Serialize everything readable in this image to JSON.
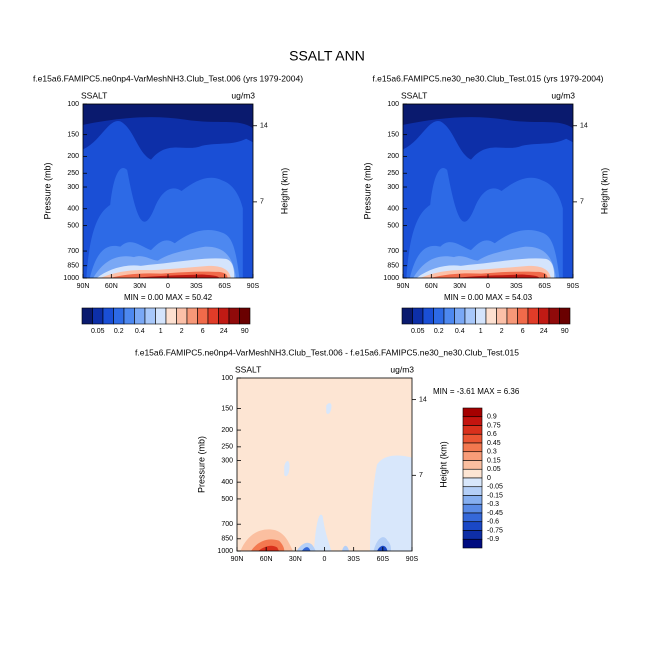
{
  "title": "SSALT ANN",
  "chart_data": [
    {
      "type": "contour",
      "subtitle": "f.e15a6.FAMIPC5.ne0np4-VarMeshNH3.Club_Test.006 (yrs 1979-2004)",
      "left_label": "SSALT",
      "right_label": "ug/m3",
      "ylabel": "Pressure (mb)",
      "y2label": "Height (km)",
      "ylim": [
        1000,
        100
      ],
      "yscale": "log",
      "yticks": [
        100,
        150,
        200,
        250,
        300,
        400,
        500,
        700,
        850,
        1000
      ],
      "y2lim": [
        0,
        16
      ],
      "y2ticks": [
        14,
        7
      ],
      "xlim": [
        90,
        -90
      ],
      "xticks": [
        {
          "value": 90,
          "label": "90N"
        },
        {
          "value": 60,
          "label": "60N"
        },
        {
          "value": 30,
          "label": "30N"
        },
        0,
        {
          "value": -30,
          "label": "30S"
        },
        {
          "value": -60,
          "label": "60S"
        },
        {
          "value": -90,
          "label": "90S"
        }
      ],
      "stats": "MIN =  0.00  MAX = 50.42",
      "colorbar": {
        "orientation": "horizontal",
        "labels": [
          0.05,
          0.2,
          0.4,
          1,
          2,
          6,
          24,
          90
        ],
        "colors": [
          "#0a1a6e",
          "#0d2fa8",
          "#1a4fd6",
          "#2d6ae6",
          "#4d88f0",
          "#7aa8f5",
          "#a8c8fa",
          "#d4e4fc",
          "#fde0d0",
          "#fbc0a8",
          "#f79878",
          "#f06a4a",
          "#e03c28",
          "#c01a14",
          "#900a0a",
          "#6a0000"
        ]
      }
    },
    {
      "type": "contour",
      "subtitle": "f.e15a6.FAMIPC5.ne30_ne30.Club_Test.015 (yrs 1979-2004)",
      "left_label": "SSALT",
      "right_label": "ug/m3",
      "ylabel": "Pressure (mb)",
      "y2label": "Height (km)",
      "ylim": [
        1000,
        100
      ],
      "yscale": "log",
      "yticks": [
        100,
        150,
        200,
        250,
        300,
        400,
        500,
        700,
        850,
        1000
      ],
      "y2lim": [
        0,
        16
      ],
      "y2ticks": [
        14,
        7
      ],
      "xlim": [
        90,
        -90
      ],
      "xticks": [
        {
          "value": 90,
          "label": "90N"
        },
        {
          "value": 60,
          "label": "60N"
        },
        {
          "value": 30,
          "label": "30N"
        },
        0,
        {
          "value": -30,
          "label": "30S"
        },
        {
          "value": -60,
          "label": "60S"
        },
        {
          "value": -90,
          "label": "90S"
        }
      ],
      "stats": "MIN =  0.00  MAX = 54.03",
      "colorbar": {
        "orientation": "horizontal",
        "labels": [
          0.05,
          0.2,
          0.4,
          1,
          2,
          6,
          24,
          90
        ],
        "colors": [
          "#0a1a6e",
          "#0d2fa8",
          "#1a4fd6",
          "#2d6ae6",
          "#4d88f0",
          "#7aa8f5",
          "#a8c8fa",
          "#d4e4fc",
          "#fde0d0",
          "#fbc0a8",
          "#f79878",
          "#f06a4a",
          "#e03c28",
          "#c01a14",
          "#900a0a",
          "#6a0000"
        ]
      }
    },
    {
      "type": "contour-diff",
      "subtitle": "f.e15a6.FAMIPC5.ne0np4-VarMeshNH3.Club_Test.006 - f.e15a6.FAMIPC5.ne30_ne30.Club_Test.015",
      "left_label": "SSALT",
      "right_label": "ug/m3",
      "ylabel": "Pressure (mb)",
      "y2label": "Height (km)",
      "ylim": [
        1000,
        100
      ],
      "yscale": "log",
      "yticks": [
        100,
        150,
        200,
        250,
        300,
        400,
        500,
        700,
        850,
        1000
      ],
      "y2lim": [
        0,
        16
      ],
      "y2ticks": [
        14,
        7
      ],
      "xlim": [
        90,
        -90
      ],
      "xticks": [
        {
          "value": 90,
          "label": "90N"
        },
        {
          "value": 60,
          "label": "60N"
        },
        {
          "value": 30,
          "label": "30N"
        },
        0,
        {
          "value": -30,
          "label": "30S"
        },
        {
          "value": -60,
          "label": "60S"
        },
        {
          "value": -90,
          "label": "90S"
        }
      ],
      "stats": "MIN = -3.61  MAX =  6.36",
      "colorbar": {
        "orientation": "vertical",
        "labels": [
          0.9,
          0.75,
          0.6,
          0.45,
          0.3,
          0.15,
          0.05,
          0,
          -0.05,
          -0.15,
          -0.3,
          -0.45,
          -0.6,
          -0.75,
          -0.9
        ],
        "colors": [
          "#a50000",
          "#c4140f",
          "#d9301c",
          "#eb5533",
          "#f3784f",
          "#f89c78",
          "#fbbfa0",
          "#fde5d3",
          "#d8e7fb",
          "#b4cff7",
          "#86aff0",
          "#5a8be6",
          "#3568d9",
          "#1a48c6",
          "#0e2ea6",
          "#000c80"
        ]
      }
    }
  ]
}
